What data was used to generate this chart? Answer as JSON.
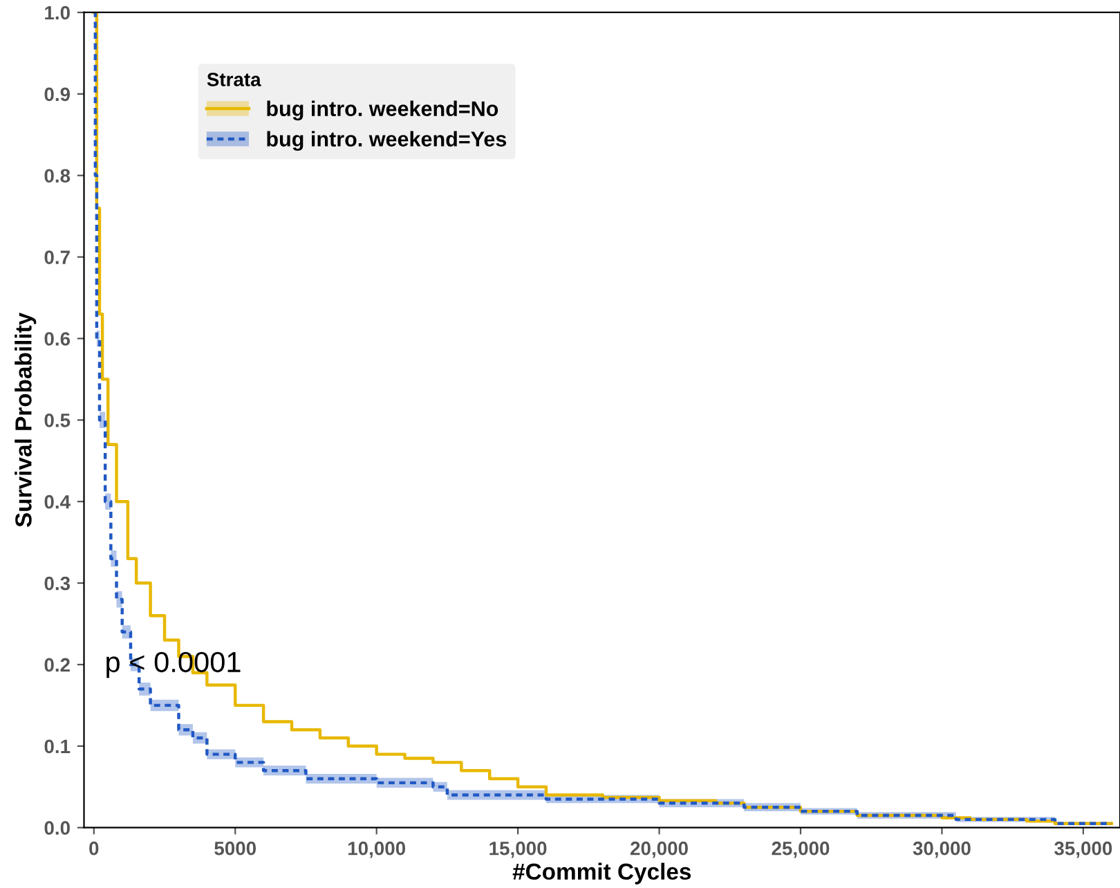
{
  "chart_data": {
    "type": "step",
    "xlabel": "#Commit Cycles",
    "ylabel": "Survival Probability",
    "legend_title": "Strata",
    "legend": "top left",
    "grid": false,
    "xlim": [
      -350,
      36300
    ],
    "ylim": [
      0,
      1.0
    ],
    "xticks": [
      0,
      5000,
      {
        "value": 10000,
        "label": "10,000"
      },
      {
        "value": 15000,
        "label": "15,000"
      },
      {
        "value": 20000,
        "label": "20,000"
      },
      {
        "value": 25000,
        "label": "25,000"
      },
      {
        "value": 30000,
        "label": "30,000"
      },
      {
        "value": 35000,
        "label": "35,000"
      }
    ],
    "yticks": [
      {
        "value": 0,
        "label": "0.0"
      },
      0.1,
      0.2,
      0.3,
      0.4,
      0.5,
      0.6,
      0.7,
      0.8,
      0.9,
      {
        "value": 1,
        "label": "1.0"
      }
    ],
    "annotations": [
      "p < 0.0001"
    ],
    "series": [
      {
        "name": "bug intro. weekend=No",
        "color": "#e7b800",
        "line_style": "solid",
        "x": [
          0,
          100,
          200,
          300,
          500,
          800,
          1200,
          1500,
          2000,
          2500,
          3000,
          3500,
          4000,
          5000,
          6000,
          7000,
          8000,
          9000,
          10000,
          11000,
          12000,
          13000,
          14000,
          15000,
          16000,
          18000,
          20000,
          22000,
          23000,
          25000,
          27000,
          30000,
          31000,
          33000,
          34000,
          36000
        ],
        "values": [
          1.0,
          0.76,
          0.63,
          0.55,
          0.47,
          0.4,
          0.33,
          0.3,
          0.26,
          0.23,
          0.21,
          0.19,
          0.175,
          0.15,
          0.13,
          0.12,
          0.11,
          0.1,
          0.09,
          0.085,
          0.08,
          0.07,
          0.06,
          0.05,
          0.04,
          0.037,
          0.033,
          0.03,
          0.025,
          0.02,
          0.015,
          0.012,
          0.01,
          0.008,
          0.005,
          0.005
        ]
      },
      {
        "name": "bug intro. weekend=Yes",
        "color": "#2159c4",
        "line_style": "dashed",
        "x": [
          0,
          50,
          100,
          200,
          400,
          600,
          800,
          1000,
          1300,
          1600,
          2000,
          3000,
          3500,
          4000,
          5000,
          6000,
          7500,
          10000,
          12000,
          12500,
          16000,
          20000,
          23000,
          25000,
          27000,
          30500,
          31000,
          34000,
          36000
        ],
        "values": [
          1.0,
          0.8,
          0.6,
          0.5,
          0.4,
          0.33,
          0.28,
          0.24,
          0.2,
          0.17,
          0.15,
          0.12,
          0.11,
          0.09,
          0.08,
          0.07,
          0.06,
          0.055,
          0.05,
          0.04,
          0.035,
          0.03,
          0.025,
          0.02,
          0.015,
          0.01,
          0.01,
          0.005,
          0.005
        ],
        "lower": [
          1.0,
          0.79,
          0.59,
          0.49,
          0.39,
          0.32,
          0.27,
          0.232,
          0.192,
          0.162,
          0.143,
          0.113,
          0.103,
          0.084,
          0.074,
          0.064,
          0.054,
          0.049,
          0.044,
          0.034,
          0.03,
          0.025,
          0.02,
          0.016,
          0.011,
          0.007,
          0.007,
          0.003,
          0.003
        ],
        "upper": [
          1.0,
          0.81,
          0.61,
          0.51,
          0.41,
          0.34,
          0.29,
          0.248,
          0.208,
          0.178,
          0.157,
          0.127,
          0.117,
          0.096,
          0.086,
          0.076,
          0.066,
          0.061,
          0.056,
          0.046,
          0.04,
          0.035,
          0.03,
          0.024,
          0.019,
          0.013,
          0.013,
          0.007,
          0.007
        ]
      }
    ]
  }
}
